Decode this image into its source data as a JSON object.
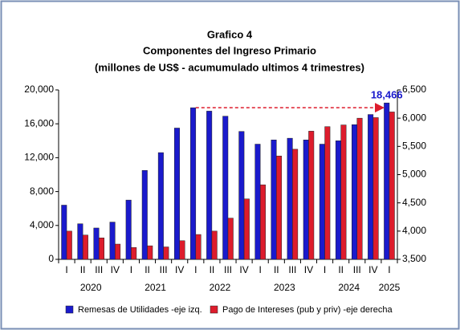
{
  "chart_data": {
    "type": "bar",
    "title": "Grafico 4",
    "subtitle": "Componentes del Ingreso Primario",
    "subtitle2": "(millones de US$ - acumumulado ultimos 4 trimestres)",
    "categories": [
      "I",
      "II",
      "III",
      "IV",
      "I",
      "II",
      "III",
      "IV",
      "I",
      "II",
      "III",
      "IV",
      "I",
      "II",
      "III",
      "IV",
      "I",
      "II",
      "III",
      "IV",
      "I"
    ],
    "x_groups": [
      "2020",
      null,
      null,
      null,
      "2021",
      null,
      null,
      null,
      "2022",
      null,
      null,
      null,
      "2023",
      null,
      null,
      null,
      "2024",
      null,
      null,
      null,
      "2025"
    ],
    "series": [
      {
        "name": "Remesas de Utilidades -eje izq.",
        "color": "#1a1acc",
        "values": [
          6400,
          4200,
          3700,
          4400,
          7000,
          10500,
          12600,
          15500,
          17900,
          17500,
          16900,
          15100,
          13600,
          14100,
          14300,
          14100,
          13600,
          14000,
          15900,
          17100,
          18466
        ],
        "value_labels": [
          null,
          null,
          null,
          null,
          null,
          null,
          null,
          null,
          null,
          null,
          null,
          null,
          null,
          null,
          null,
          null,
          null,
          null,
          null,
          null,
          "18,466"
        ]
      },
      {
        "name": "Pago de Intereses (pub y priv) -eje derecha",
        "color": "#dd1c2c",
        "axis": "y2",
        "values": [
          4000,
          3930,
          3880,
          3770,
          3710,
          3740,
          3720,
          3830,
          3940,
          4000,
          4230,
          4570,
          4820,
          5330,
          5450,
          5770,
          5850,
          5880,
          6000,
          6010,
          6110
        ]
      }
    ],
    "ylim": [
      0,
      20000
    ],
    "yticks": [
      0,
      {
        "value": 4000,
        "label": "4,000"
      },
      {
        "value": 8000,
        "label": "8,000"
      },
      {
        "value": 12000,
        "label": "12,000"
      },
      {
        "value": 16000,
        "label": "16,000"
      },
      {
        "value": 20000,
        "label": "20,000"
      }
    ],
    "y2lim": [
      3500,
      6500
    ],
    "y2ticks": [
      {
        "value": 3500,
        "label": "3,500"
      },
      {
        "value": 4000,
        "label": "4,000"
      },
      {
        "value": 4500,
        "label": "4,500"
      },
      {
        "value": 5000,
        "label": "5,000"
      },
      {
        "value": 5500,
        "label": "5,500"
      },
      {
        "value": 6000,
        "label": "6,000"
      },
      {
        "value": 6500,
        "label": "6,500"
      }
    ],
    "grid": false
  }
}
